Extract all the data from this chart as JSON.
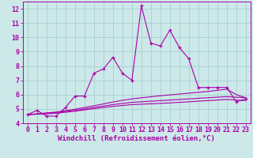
{
  "xlabel": "Windchill (Refroidissement éolien,°C)",
  "x_values": [
    0,
    1,
    2,
    3,
    4,
    5,
    6,
    7,
    8,
    9,
    10,
    11,
    12,
    13,
    14,
    15,
    16,
    17,
    18,
    19,
    20,
    21,
    22,
    23
  ],
  "line_main": [
    4.6,
    4.9,
    4.5,
    4.5,
    5.1,
    5.9,
    5.9,
    7.5,
    7.8,
    8.6,
    7.5,
    7.0,
    12.2,
    9.6,
    9.4,
    10.5,
    9.3,
    8.5,
    6.5,
    6.5,
    6.5,
    6.5,
    5.5,
    5.7
  ],
  "line_trend1": [
    4.6,
    4.65,
    4.7,
    4.75,
    4.82,
    4.9,
    5.0,
    5.1,
    5.2,
    5.3,
    5.38,
    5.46,
    5.5,
    5.54,
    5.58,
    5.62,
    5.66,
    5.7,
    5.74,
    5.78,
    5.82,
    5.86,
    5.82,
    5.78
  ],
  "line_trend2": [
    4.6,
    4.66,
    4.72,
    4.78,
    4.88,
    4.98,
    5.1,
    5.22,
    5.35,
    5.48,
    5.6,
    5.7,
    5.78,
    5.85,
    5.92,
    5.98,
    6.04,
    6.1,
    6.16,
    6.22,
    6.3,
    6.38,
    6.0,
    5.78
  ],
  "line_trend3": [
    4.6,
    4.63,
    4.66,
    4.7,
    4.77,
    4.84,
    4.93,
    5.02,
    5.1,
    5.18,
    5.24,
    5.3,
    5.33,
    5.36,
    5.39,
    5.42,
    5.46,
    5.5,
    5.54,
    5.58,
    5.62,
    5.66,
    5.62,
    5.58
  ],
  "bg_color": "#cce8e8",
  "grid_color": "#a0cccc",
  "line_color": "#aa00aa",
  "xlim": [
    -0.5,
    23.5
  ],
  "ylim": [
    4,
    12.5
  ],
  "yticks": [
    4,
    5,
    6,
    7,
    8,
    9,
    10,
    11,
    12
  ],
  "xticks": [
    0,
    1,
    2,
    3,
    4,
    5,
    6,
    7,
    8,
    9,
    10,
    11,
    12,
    13,
    14,
    15,
    16,
    17,
    18,
    19,
    20,
    21,
    22,
    23
  ],
  "tick_fontsize": 6,
  "xlabel_fontsize": 6.5
}
